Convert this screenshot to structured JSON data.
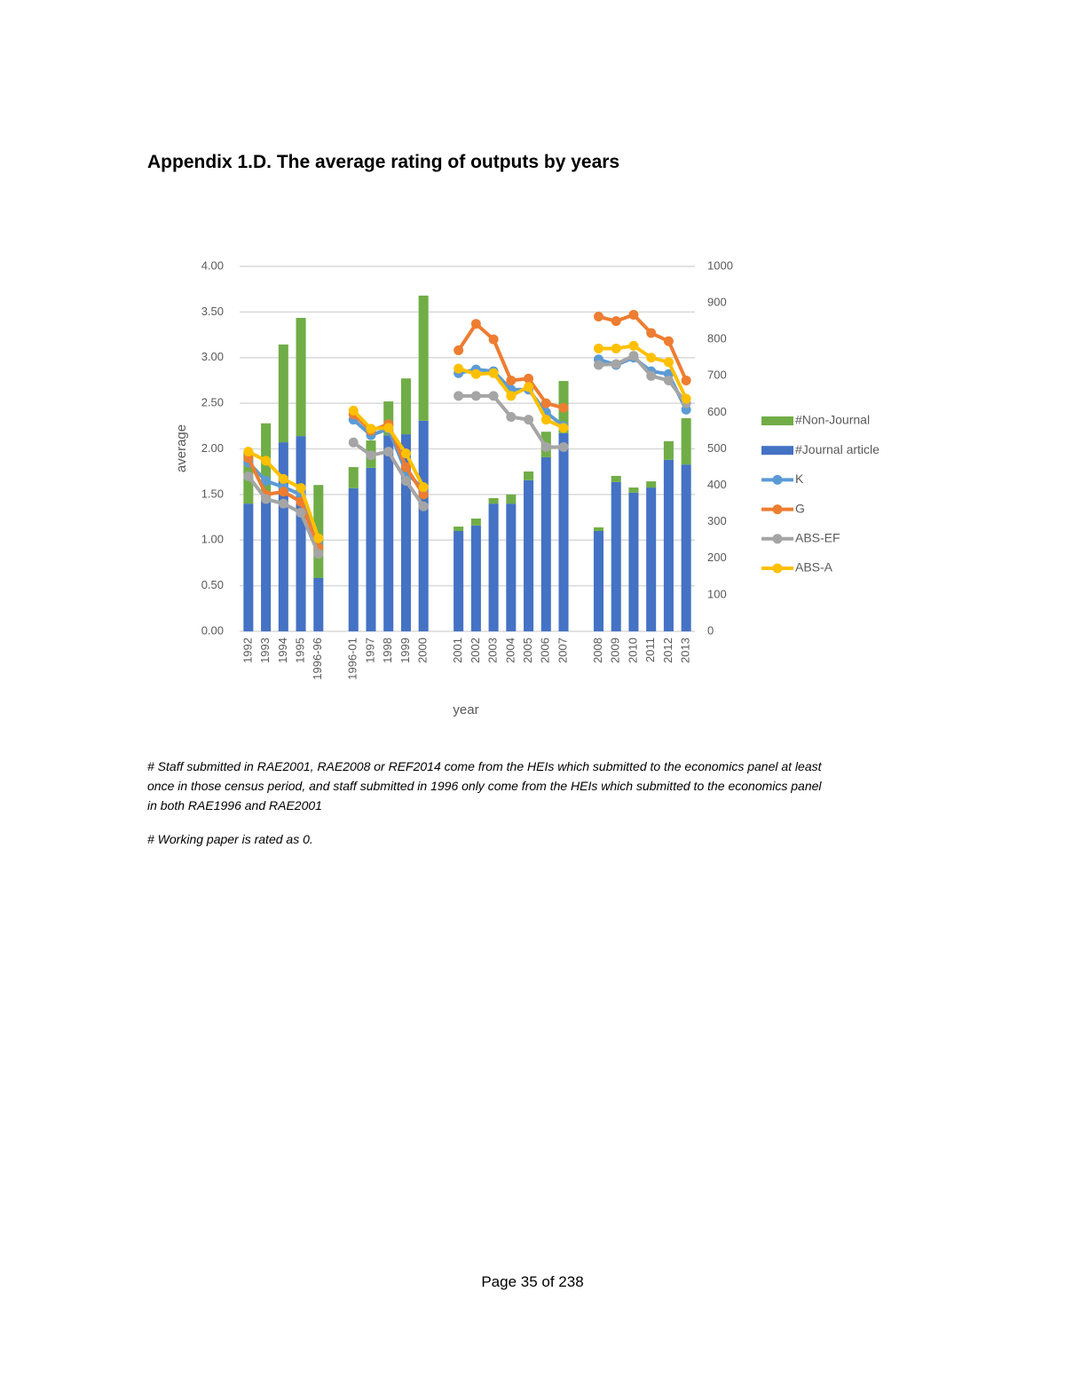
{
  "title": "Appendix 1.D. The average rating of outputs by years",
  "chart_data": {
    "type": "combo",
    "x_label": "year",
    "y_label": "average",
    "categories": [
      "1992",
      "1993",
      "1994",
      "1995",
      "1996-96",
      null,
      "1996-01",
      "1997",
      "1998",
      "1999",
      "2000",
      null,
      "2001",
      "2002",
      "2003",
      "2004",
      "2005",
      "2006",
      "2007",
      null,
      "2008",
      "2009",
      "2010",
      "2011",
      "2012",
      "2013"
    ],
    "ylim": [
      0,
      4
    ],
    "yticks": [
      {
        "value": 0,
        "label": "0.00"
      },
      {
        "value": 0.5,
        "label": "0.50"
      },
      {
        "value": 1,
        "label": "1.00"
      },
      {
        "value": 1.5,
        "label": "1.50"
      },
      {
        "value": 2,
        "label": "2.00"
      },
      {
        "value": 2.5,
        "label": "2.50"
      },
      {
        "value": 3,
        "label": "3.00"
      },
      {
        "value": 3.5,
        "label": "3.50"
      },
      {
        "value": 4,
        "label": "4.00"
      }
    ],
    "y2lim": [
      0,
      1000
    ],
    "y2ticks": [
      0,
      100,
      200,
      300,
      400,
      500,
      600,
      700,
      800,
      900,
      1000
    ],
    "grid": true,
    "legend": "right",
    "series": [
      {
        "name": "#Non-Journal",
        "type": "bar",
        "axis": "y2",
        "color": "#70ad47",
        "values": [
          140,
          210,
          268,
          324,
          255,
          null,
          58,
          75,
          93,
          153,
          343,
          null,
          12,
          19,
          15,
          25,
          24,
          70,
          143,
          null,
          10,
          17,
          14,
          17,
          51,
          127
        ]
      },
      {
        "name": "#Journal article",
        "type": "bar",
        "axis": "y2",
        "color": "#4472c4",
        "values": [
          350,
          360,
          518,
          535,
          146,
          null,
          392,
          448,
          537,
          540,
          577,
          null,
          275,
          290,
          350,
          350,
          414,
          477,
          543,
          null,
          275,
          409,
          380,
          394,
          470,
          457
        ]
      },
      {
        "name": "K",
        "type": "line",
        "color": "#5b9bd5",
        "values": [
          1.85,
          1.65,
          1.58,
          1.5,
          0.95,
          null,
          2.32,
          2.15,
          2.22,
          1.75,
          1.55,
          null,
          2.83,
          2.87,
          2.85,
          2.65,
          2.65,
          2.4,
          2.25,
          null,
          2.98,
          2.92,
          3.0,
          2.85,
          2.82,
          2.43
        ]
      },
      {
        "name": "G",
        "type": "line",
        "color": "#ed7d31",
        "values": [
          1.9,
          1.5,
          1.53,
          1.42,
          0.92,
          null,
          2.38,
          2.2,
          2.27,
          1.8,
          1.5,
          null,
          3.08,
          3.37,
          3.2,
          2.75,
          2.77,
          2.5,
          2.45,
          null,
          3.45,
          3.4,
          3.47,
          3.27,
          3.18,
          2.75
        ]
      },
      {
        "name": "ABS-EF",
        "type": "line",
        "color": "#a5a5a5",
        "values": [
          1.7,
          1.45,
          1.4,
          1.3,
          0.85,
          null,
          2.07,
          1.93,
          1.97,
          1.65,
          1.37,
          null,
          2.58,
          2.58,
          2.58,
          2.35,
          2.32,
          2.02,
          2.02,
          null,
          2.92,
          2.93,
          3.02,
          2.8,
          2.75,
          2.5
        ]
      },
      {
        "name": "ABS-A",
        "type": "line",
        "color": "#ffc000",
        "values": [
          1.97,
          1.87,
          1.67,
          1.57,
          1.02,
          null,
          2.42,
          2.22,
          2.23,
          1.95,
          1.58,
          null,
          2.88,
          2.82,
          2.83,
          2.58,
          2.68,
          2.32,
          2.23,
          null,
          3.1,
          3.1,
          3.13,
          3.0,
          2.95,
          2.55
        ]
      }
    ]
  },
  "notes": [
    [
      "# Staff submitted in RAE2001, RAE2008 or REF2014 come from the HEIs which submitted to the economics panel at least",
      "once in those census period, and staff submitted in 1996 only come from the HEIs which submitted to the economics panel",
      "in both RAE1996 and RAE2001"
    ],
    "# Working paper is rated as 0."
  ],
  "footer": "Page 35 of 238"
}
